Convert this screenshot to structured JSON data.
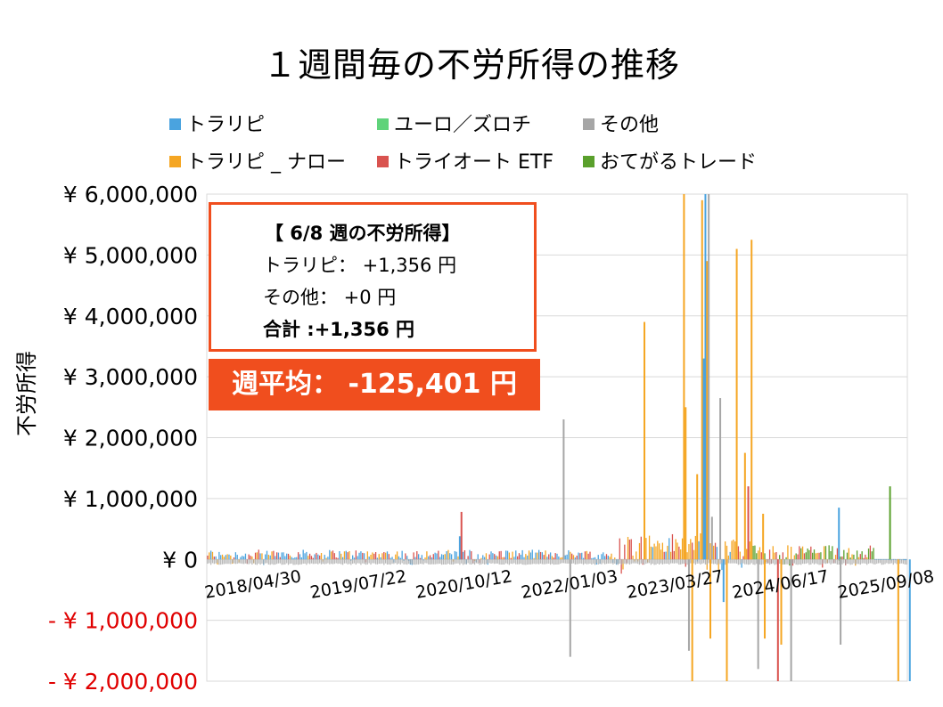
{
  "title": "１週間毎の不労所得の推移",
  "legend": [
    {
      "label": "トラリピ",
      "color": "#4aa3df"
    },
    {
      "label": "ユーロ／ズロチ",
      "color": "#5fd37a"
    },
    {
      "label": "その他",
      "color": "#a6a6a6"
    },
    {
      "label": "トラリピ _ ナロー",
      "color": "#f5a623"
    },
    {
      "label": "トライオート ETF",
      "color": "#d9534f"
    },
    {
      "label": "おてがるトレード",
      "color": "#5aa02c"
    }
  ],
  "info_box": {
    "heading": "【 6/8 週の不労所得】",
    "line1": "トラリピ： +1,356 円",
    "line2": "その他： +0 円",
    "total": "合計 :+1,356 円"
  },
  "average": "週平均： -125,401 円",
  "chart_data": {
    "type": "bar",
    "title": "１週間毎の不労所得の推移",
    "ylabel": "不労所得",
    "xlabel": "",
    "ylim": [
      -2000000,
      6000000
    ],
    "grid": true,
    "legend_position": "top",
    "y_ticks": [
      {
        "value": 6000000,
        "label": "¥ 6,000,000",
        "color": "#000000"
      },
      {
        "value": 5000000,
        "label": "¥ 5,000,000",
        "color": "#000000"
      },
      {
        "value": 4000000,
        "label": "¥ 4,000,000",
        "color": "#000000"
      },
      {
        "value": 3000000,
        "label": "¥ 3,000,000",
        "color": "#000000"
      },
      {
        "value": 2000000,
        "label": "¥ 2,000,000",
        "color": "#000000"
      },
      {
        "value": 1000000,
        "label": "¥ 1,000,000",
        "color": "#000000"
      },
      {
        "value": 0,
        "label": "¥ 0",
        "color": "#000000"
      },
      {
        "value": -1000000,
        "label": "- ¥ 1,000,000",
        "color": "#e00000"
      },
      {
        "value": -2000000,
        "label": "- ¥ 2,000,000",
        "color": "#e00000"
      }
    ],
    "x_ticks": [
      "2018/04/30",
      "2019/07/22",
      "2020/10/12",
      "2022/01/03",
      "2023/03/27",
      "2024/06/17",
      "2025/09/08"
    ],
    "x_tick_index": [
      0,
      64,
      128,
      192,
      256,
      320,
      384
    ],
    "n_weeks": 425,
    "highlights": [
      {
        "week": 153,
        "series": "トラリピ",
        "value": 380000
      },
      {
        "week": 154,
        "series": "トライオート ETF",
        "value": 780000
      },
      {
        "week": 216,
        "series": "その他",
        "value": 2300000
      },
      {
        "week": 220,
        "series": "その他",
        "value": -1600000
      },
      {
        "week": 265,
        "series": "トラリピ _ ナロー",
        "value": 3900000
      },
      {
        "week": 289,
        "series": "トラリピ _ ナロー",
        "value": 6000000
      },
      {
        "week": 290,
        "series": "トラリピ _ ナロー",
        "value": 2500000
      },
      {
        "week": 292,
        "series": "その他",
        "value": -1500000
      },
      {
        "week": 294,
        "series": "トラリピ _ ナロー",
        "value": -2000000
      },
      {
        "week": 297,
        "series": "トラリピ _ ナロー",
        "value": 1400000
      },
      {
        "week": 300,
        "series": "トラリピ _ ナロー",
        "value": 5900000
      },
      {
        "week": 301,
        "series": "トラリピ",
        "value": 3300000
      },
      {
        "week": 302,
        "series": "トラリピ",
        "value": 6000000
      },
      {
        "week": 303,
        "series": "トラリピ _ ナロー",
        "value": 4900000
      },
      {
        "week": 304,
        "series": "その他",
        "value": 6000000
      },
      {
        "week": 305,
        "series": "トラリピ _ ナロー",
        "value": -1300000
      },
      {
        "week": 306,
        "series": "その他",
        "value": 700000
      },
      {
        "week": 311,
        "series": "その他",
        "value": 2650000
      },
      {
        "week": 313,
        "series": "トラリピ",
        "value": -700000
      },
      {
        "week": 315,
        "series": "トラリピ _ ナロー",
        "value": -2000000
      },
      {
        "week": 321,
        "series": "トラリピ _ ナロー",
        "value": 5100000
      },
      {
        "week": 326,
        "series": "トラリピ _ ナロー",
        "value": 1750000
      },
      {
        "week": 328,
        "series": "トライオート ETF",
        "value": 1200000
      },
      {
        "week": 330,
        "series": "トラリピ _ ナロー",
        "value": 5250000
      },
      {
        "week": 334,
        "series": "その他",
        "value": -1800000
      },
      {
        "week": 337,
        "series": "トラリピ _ ナロー",
        "value": 750000
      },
      {
        "week": 338,
        "series": "トラリピ _ ナロー",
        "value": -1300000
      },
      {
        "week": 346,
        "series": "トライオート ETF",
        "value": -2000000
      },
      {
        "week": 348,
        "series": "トラリピ _ ナロー",
        "value": -1400000
      },
      {
        "week": 354,
        "series": "その他",
        "value": -2000000
      },
      {
        "week": 383,
        "series": "トラリピ",
        "value": 850000
      },
      {
        "week": 384,
        "series": "その他",
        "value": -1400000
      },
      {
        "week": 414,
        "series": "おてがるトレード",
        "value": 1200000
      },
      {
        "week": 419,
        "series": "トラリピ _ ナロー",
        "value": -2000000
      },
      {
        "week": 426,
        "series": "トラリピ",
        "value": -2000000
      },
      {
        "week": 423,
        "series": "トラリピ",
        "value": 1356
      }
    ]
  }
}
